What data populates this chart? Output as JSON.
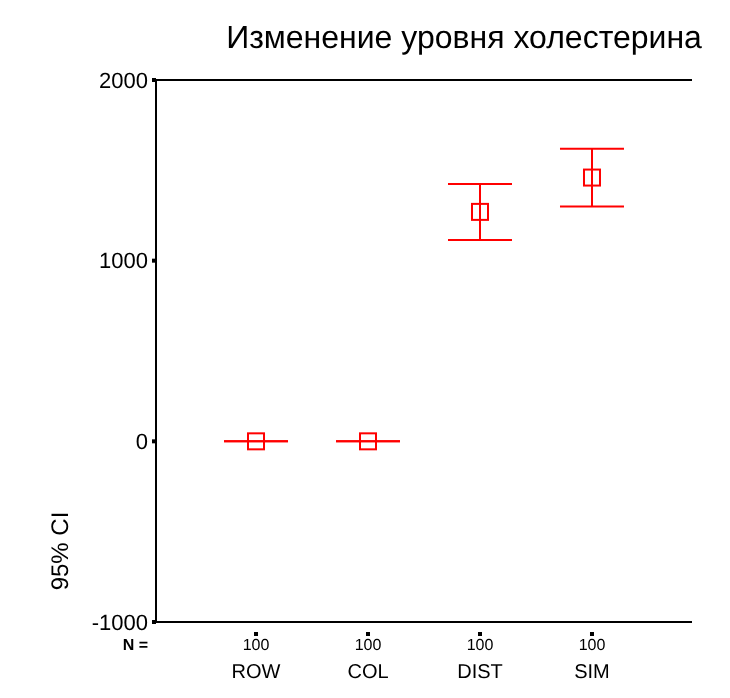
{
  "chart_data": {
    "type": "scatter",
    "title": "Изменение уровня холестерина",
    "ylabel": "95% CI",
    "categories": [
      "ROW",
      "COL",
      "DIST",
      "SIM"
    ],
    "series": [
      {
        "color": "#ff0000",
        "values": [
          0,
          0,
          1270,
          1460
        ],
        "errors": [
          0,
          0,
          155,
          160
        ]
      }
    ],
    "marker": "square",
    "ylim": [
      -1000,
      2000
    ],
    "yticks": [
      -1000,
      0,
      1000,
      2000
    ],
    "annotations": [
      "N =",
      "100",
      "100",
      "100",
      "100"
    ]
  }
}
